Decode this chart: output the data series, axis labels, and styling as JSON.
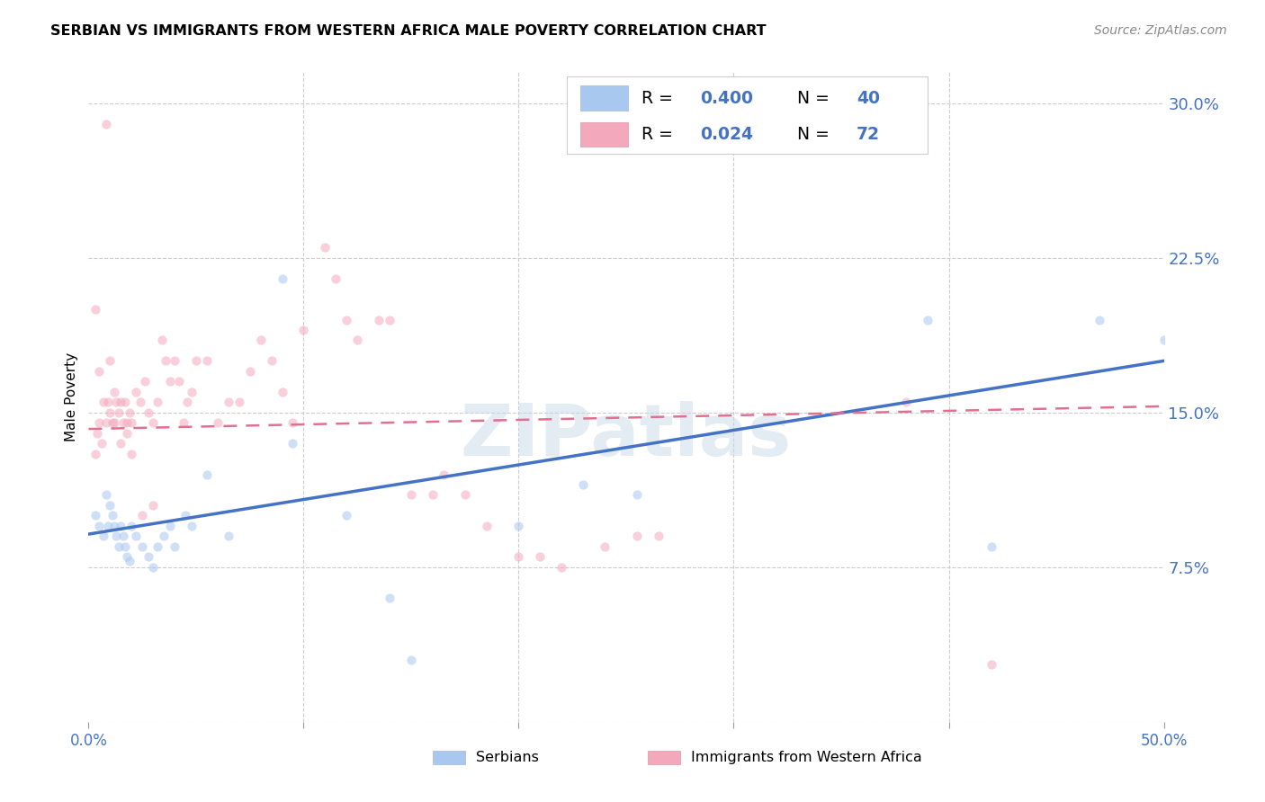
{
  "title": "SERBIAN VS IMMIGRANTS FROM WESTERN AFRICA MALE POVERTY CORRELATION CHART",
  "source": "Source: ZipAtlas.com",
  "ylabel": "Male Poverty",
  "yticks": [
    0.0,
    0.075,
    0.15,
    0.225,
    0.3
  ],
  "ytick_labels": [
    "",
    "7.5%",
    "15.0%",
    "22.5%",
    "30.0%"
  ],
  "xlim": [
    0.0,
    0.5
  ],
  "ylim": [
    0.0,
    0.315
  ],
  "legend_R1": "0.400",
  "legend_N1": "40",
  "legend_R2": "0.024",
  "legend_N2": "72",
  "color_serbian": "#a8c8f0",
  "color_western_africa": "#f4a8bc",
  "color_line_serbian": "#4472c4",
  "color_line_wa": "#e07090",
  "serbian_x": [
    0.003,
    0.005,
    0.007,
    0.008,
    0.009,
    0.01,
    0.011,
    0.012,
    0.013,
    0.014,
    0.015,
    0.016,
    0.017,
    0.018,
    0.019,
    0.02,
    0.022,
    0.025,
    0.028,
    0.03,
    0.032,
    0.035,
    0.038,
    0.04,
    0.045,
    0.048,
    0.055,
    0.065,
    0.09,
    0.095,
    0.12,
    0.14,
    0.15,
    0.2,
    0.23,
    0.255,
    0.39,
    0.42,
    0.47,
    0.5
  ],
  "serbian_y": [
    0.1,
    0.095,
    0.09,
    0.11,
    0.095,
    0.105,
    0.1,
    0.095,
    0.09,
    0.085,
    0.095,
    0.09,
    0.085,
    0.08,
    0.078,
    0.095,
    0.09,
    0.085,
    0.08,
    0.075,
    0.085,
    0.09,
    0.095,
    0.085,
    0.1,
    0.095,
    0.12,
    0.09,
    0.215,
    0.135,
    0.1,
    0.06,
    0.03,
    0.095,
    0.115,
    0.11,
    0.195,
    0.085,
    0.195,
    0.185
  ],
  "wa_x": [
    0.003,
    0.004,
    0.005,
    0.006,
    0.007,
    0.008,
    0.009,
    0.01,
    0.011,
    0.012,
    0.013,
    0.014,
    0.015,
    0.016,
    0.017,
    0.018,
    0.019,
    0.02,
    0.022,
    0.024,
    0.026,
    0.028,
    0.03,
    0.032,
    0.034,
    0.036,
    0.038,
    0.04,
    0.042,
    0.044,
    0.046,
    0.048,
    0.05,
    0.055,
    0.06,
    0.065,
    0.07,
    0.075,
    0.08,
    0.085,
    0.09,
    0.095,
    0.1,
    0.11,
    0.115,
    0.12,
    0.125,
    0.135,
    0.14,
    0.15,
    0.16,
    0.165,
    0.175,
    0.185,
    0.2,
    0.21,
    0.22,
    0.24,
    0.255,
    0.265,
    0.003,
    0.005,
    0.008,
    0.01,
    0.012,
    0.015,
    0.018,
    0.02,
    0.025,
    0.03,
    0.38,
    0.42
  ],
  "wa_y": [
    0.13,
    0.14,
    0.145,
    0.135,
    0.155,
    0.145,
    0.155,
    0.15,
    0.145,
    0.16,
    0.155,
    0.15,
    0.155,
    0.145,
    0.155,
    0.145,
    0.15,
    0.145,
    0.16,
    0.155,
    0.165,
    0.15,
    0.145,
    0.155,
    0.185,
    0.175,
    0.165,
    0.175,
    0.165,
    0.145,
    0.155,
    0.16,
    0.175,
    0.175,
    0.145,
    0.155,
    0.155,
    0.17,
    0.185,
    0.175,
    0.16,
    0.145,
    0.19,
    0.23,
    0.215,
    0.195,
    0.185,
    0.195,
    0.195,
    0.11,
    0.11,
    0.12,
    0.11,
    0.095,
    0.08,
    0.08,
    0.075,
    0.085,
    0.09,
    0.09,
    0.2,
    0.17,
    0.29,
    0.175,
    0.145,
    0.135,
    0.14,
    0.13,
    0.1,
    0.105,
    0.155,
    0.028
  ],
  "background_color": "#ffffff",
  "grid_color": "#cccccc",
  "watermark": "ZIPatlas",
  "marker_size": 55,
  "marker_alpha": 0.55,
  "line_serbian_start_y": 0.091,
  "line_serbian_end_y": 0.175,
  "line_wa_start_y": 0.142,
  "line_wa_end_y": 0.153
}
